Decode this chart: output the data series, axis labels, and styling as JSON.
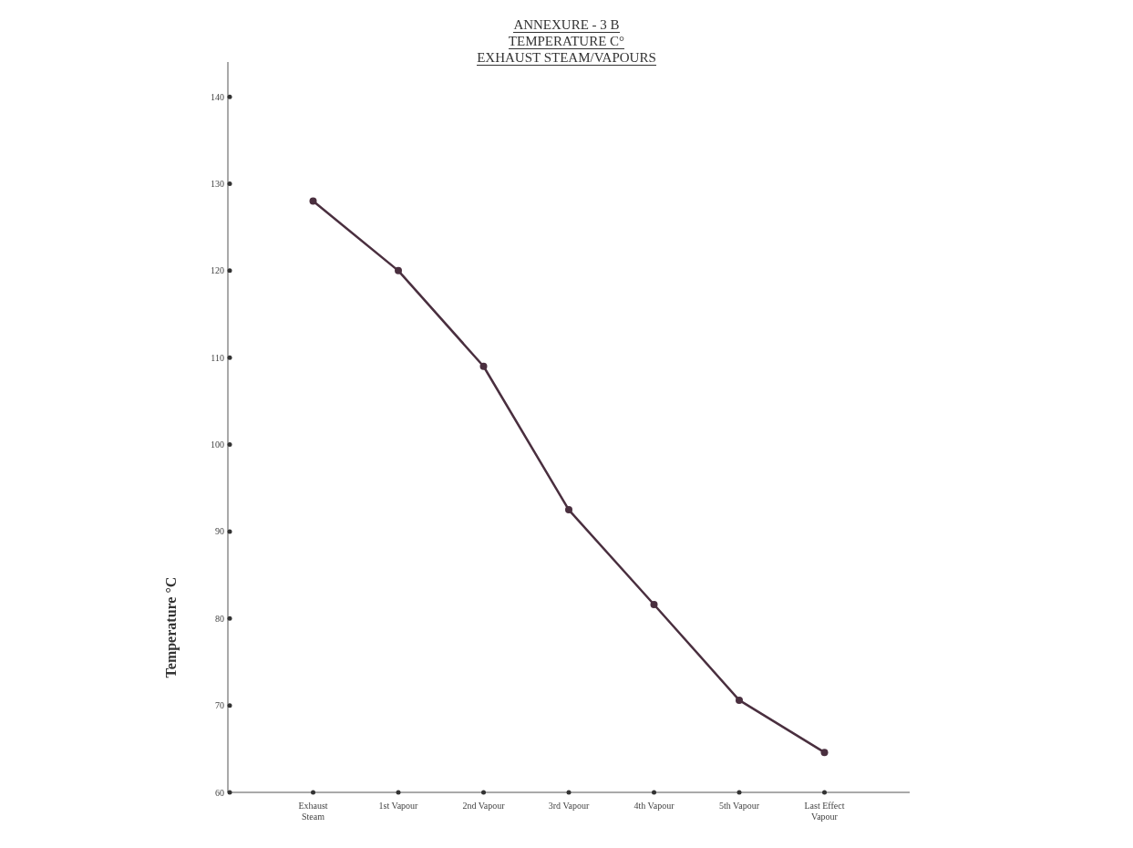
{
  "chart_data": {
    "type": "line",
    "title": "ANNEXURE - 3 B",
    "subtitle": "TEMPERATURE C°\nEXHAUST STEAM/VAPOURS",
    "ylabel": "Temperature °C",
    "categories": [
      "Exhaust Steam",
      "1st Vapour",
      "2nd Vapour",
      "3rd Vapour",
      "4th  Vapour",
      "5th  Vapour",
      "Last Effect Vapour"
    ],
    "series": [
      {
        "color": "#4a2f3f",
        "values": [
          128,
          120,
          109,
          92.5,
          81.6,
          70.6,
          64.6
        ]
      }
    ],
    "ylim": [
      60,
      144
    ],
    "yticks": [
      60,
      70,
      80,
      90,
      100,
      110,
      120,
      130,
      140
    ],
    "grid": false,
    "legend": false,
    "marker": "circle",
    "line_style": "solid"
  }
}
